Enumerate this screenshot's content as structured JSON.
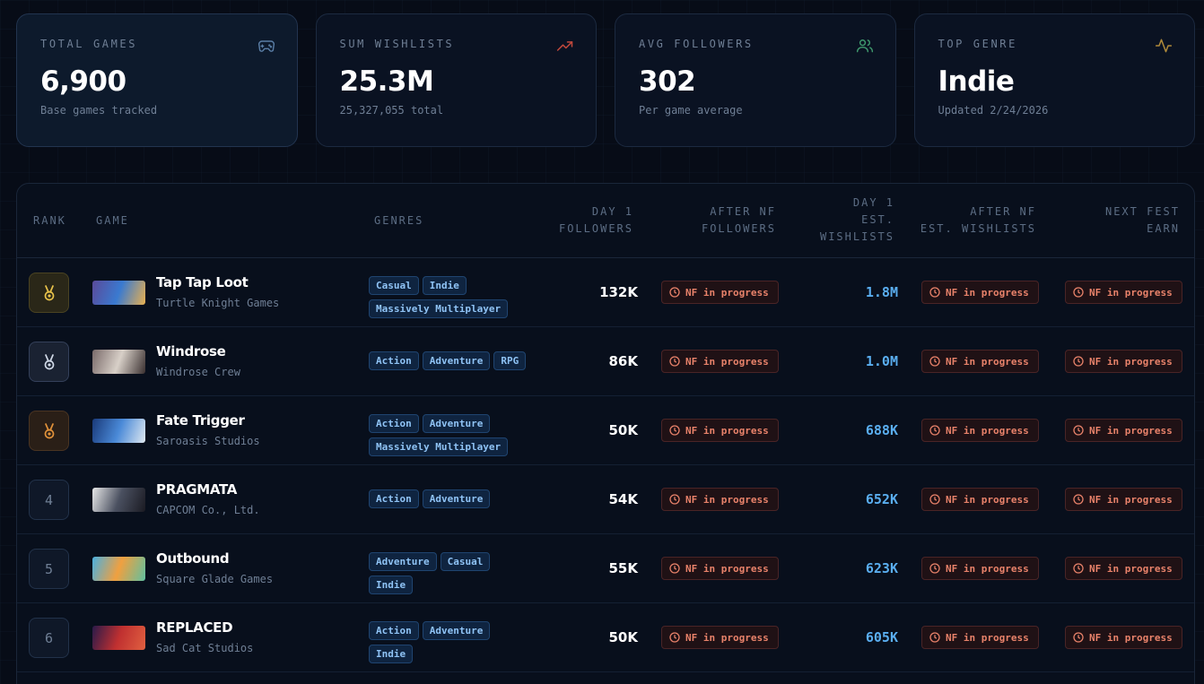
{
  "stats": [
    {
      "label": "TOTAL GAMES",
      "value": "6,900",
      "sub": "Base games tracked",
      "icon": "gamepad-icon",
      "color": "#5a7ea6"
    },
    {
      "label": "SUM WISHLISTS",
      "value": "25.3M",
      "sub": "25,327,055 total",
      "icon": "trending-up-icon",
      "color": "#c0483c"
    },
    {
      "label": "AVG FOLLOWERS",
      "value": "302",
      "sub": "Per game average",
      "icon": "users-icon",
      "color": "#3f9a6e"
    },
    {
      "label": "TOP GENRE",
      "value": "Indie",
      "sub": "Updated 2/24/2026",
      "icon": "activity-icon",
      "color": "#b08a3a"
    }
  ],
  "table": {
    "headers": {
      "rank": "RANK",
      "game": "GAME",
      "genres": "GENRES",
      "day1_followers_1": "DAY 1",
      "day1_followers_2": "FOLLOWERS",
      "after_nf_followers_1": "AFTER NF",
      "after_nf_followers_2": "FOLLOWERS",
      "day1_wishlists_1": "DAY 1",
      "day1_wishlists_2": "EST.",
      "day1_wishlists_3": "WISHLISTS",
      "after_nf_wishlists_1": "AFTER NF",
      "after_nf_wishlists_2": "EST. WISHLISTS",
      "next_fest_1": "NEXT FEST",
      "next_fest_2": "EARN"
    },
    "rows": [
      {
        "rank": "",
        "medal": "gold",
        "name": "Tap Tap Loot",
        "dev": "Turtle Knight Games",
        "genres": [
          "Casual",
          "Indie",
          "Massively Multiplayer"
        ],
        "followers": "132K",
        "wishlists": "1.8M",
        "nf": "NF in progress",
        "thumb": [
          "#5a4a9a",
          "#3a7ad0",
          "#e8b050"
        ]
      },
      {
        "rank": "",
        "medal": "silver",
        "name": "Windrose",
        "dev": "Windrose Crew",
        "genres": [
          "Action",
          "Adventure",
          "RPG"
        ],
        "followers": "86K",
        "wishlists": "1.0M",
        "nf": "NF in progress",
        "thumb": [
          "#7a6a6a",
          "#d8d0c8",
          "#3a3030"
        ]
      },
      {
        "rank": "",
        "medal": "bronze",
        "name": "Fate Trigger",
        "dev": "Saroasis Studios",
        "genres": [
          "Action",
          "Adventure",
          "Massively Multiplayer"
        ],
        "followers": "50K",
        "wishlists": "688K",
        "nf": "NF in progress",
        "thumb": [
          "#1a3a7a",
          "#4a8ad8",
          "#dfe8f0"
        ]
      },
      {
        "rank": "4",
        "medal": "",
        "name": "PRAGMATA",
        "dev": "CAPCOM Co., Ltd.",
        "genres": [
          "Action",
          "Adventure"
        ],
        "followers": "54K",
        "wishlists": "652K",
        "nf": "NF in progress",
        "thumb": [
          "#e8e8e8",
          "#4a5060",
          "#1a1a22"
        ]
      },
      {
        "rank": "5",
        "medal": "",
        "name": "Outbound",
        "dev": "Square Glade Games",
        "genres": [
          "Adventure",
          "Casual",
          "Indie"
        ],
        "followers": "55K",
        "wishlists": "623K",
        "nf": "NF in progress",
        "thumb": [
          "#4ab0e0",
          "#f0a040",
          "#60c0a0"
        ]
      },
      {
        "rank": "6",
        "medal": "",
        "name": "REPLACED",
        "dev": "Sad Cat Studios",
        "genres": [
          "Action",
          "Adventure",
          "Indie"
        ],
        "followers": "50K",
        "wishlists": "605K",
        "nf": "NF in progress",
        "thumb": [
          "#2a1a4a",
          "#c03030",
          "#e06040"
        ]
      }
    ]
  }
}
